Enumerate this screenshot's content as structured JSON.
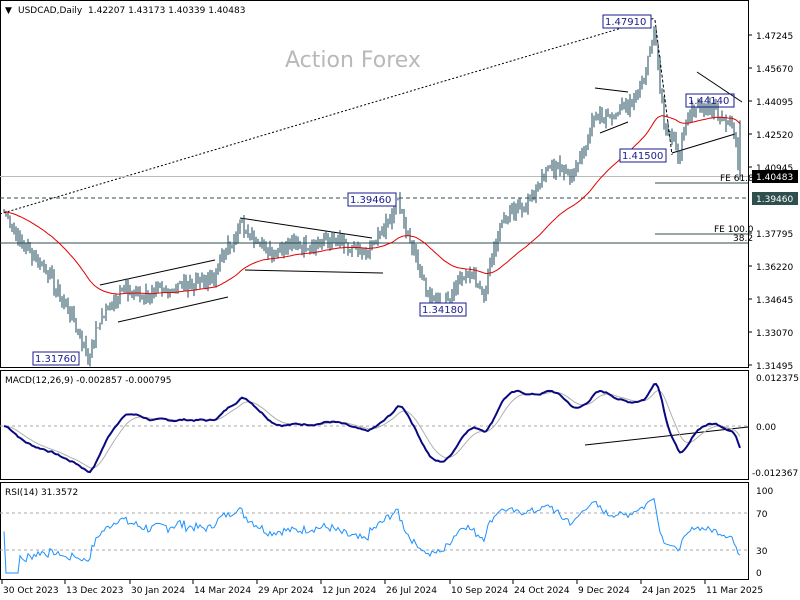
{
  "header": {
    "symbol": "USDCAD,Daily",
    "ohlc": "1.42207 1.43173 1.40339 1.40483"
  },
  "watermark": "Action Forex",
  "colors": {
    "candle": "#1c4a5a",
    "ma": "#e00000",
    "macd": "#0a0a80",
    "signal": "#b0b0b0",
    "rsi": "#1e90ff",
    "current_price_bg": "#000000",
    "level_bg": "#2f4f4f"
  },
  "chart_data": [
    {
      "type": "ohlc",
      "title": "USDCAD, Daily",
      "ylim": [
        1.31495,
        1.48
      ],
      "yticks": [
        "1.47245",
        "1.45670",
        "1.44095",
        "1.42520",
        "1.40945",
        "1.37795",
        "1.36220",
        "1.34645",
        "1.33070",
        "1.31495"
      ],
      "current_price": "1.40483",
      "level_price": "1.39460",
      "xticks": [
        "30 Oct 2023",
        "13 Dec 2023",
        "30 Jan 2024",
        "14 Mar 2024",
        "29 Apr 2024",
        "12 Jun 2024",
        "26 Jul 2024",
        "10 Sep 2024",
        "24 Oct 2024",
        "9 Dec 2024",
        "24 Jan 2025",
        "11 Mar 2025"
      ],
      "close_path_bar_price": [
        [
          0,
          1.388
        ],
        [
          3,
          1.383
        ],
        [
          8,
          1.374
        ],
        [
          20,
          1.362
        ],
        [
          35,
          1.336
        ],
        [
          42,
          1.3185
        ],
        [
          48,
          1.336
        ],
        [
          58,
          1.351
        ],
        [
          73,
          1.348
        ],
        [
          88,
          1.353
        ],
        [
          103,
          1.355
        ],
        [
          118,
          1.382
        ],
        [
          133,
          1.37
        ],
        [
          148,
          1.372
        ],
        [
          163,
          1.375
        ],
        [
          180,
          1.367
        ],
        [
          190,
          1.379
        ],
        [
          197,
          1.393
        ],
        [
          203,
          1.375
        ],
        [
          213,
          1.346
        ],
        [
          220,
          1.343
        ],
        [
          230,
          1.36
        ],
        [
          240,
          1.351
        ],
        [
          248,
          1.382
        ],
        [
          263,
          1.394
        ],
        [
          273,
          1.41
        ],
        [
          285,
          1.406
        ],
        [
          295,
          1.432
        ],
        [
          310,
          1.437
        ],
        [
          320,
          1.451
        ],
        [
          325,
          1.477
        ],
        [
          330,
          1.432
        ],
        [
          337,
          1.416
        ],
        [
          345,
          1.439
        ],
        [
          355,
          1.437
        ],
        [
          364,
          1.43
        ],
        [
          368,
          1.40483
        ]
      ],
      "annotations": [
        "1.47910",
        "1.44140",
        "1.41500",
        "1.39460",
        "1.34180",
        "1.31760",
        "FE 61.8",
        "FE 100.0",
        "38.2"
      ]
    },
    {
      "type": "line",
      "title": "MACD(12,26,9) -0.002857 -0.000795",
      "yticks": [
        "0.012375",
        "0.00",
        "-0.012367"
      ],
      "ylim": [
        -0.012367,
        0.012375
      ]
    },
    {
      "type": "line",
      "title": "RSI(14) 31.3572",
      "yticks": [
        "100",
        "70",
        "30",
        "0"
      ],
      "ylim": [
        0,
        100
      ]
    }
  ]
}
